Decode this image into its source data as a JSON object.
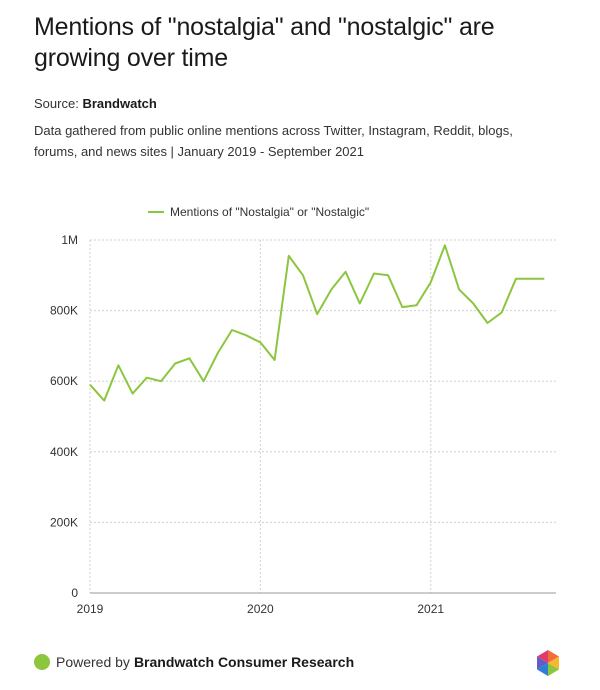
{
  "header": {
    "title": "Mentions of \"nostalgia\" and \"nostalgic\" are growing over time",
    "source_label": "Source:",
    "source_name": "Brandwatch",
    "description": "Data gathered from public online mentions across Twitter, Instagram, Reddit, blogs, forums, and news sites | January 2019 - September 2021"
  },
  "footer": {
    "powered_label": "Powered by",
    "powered_name": "Brandwatch Consumer Research"
  },
  "colors": {
    "line": "#8cc63f",
    "grid": "#d0d0d0",
    "text": "#333333"
  },
  "chart_data": {
    "type": "line",
    "series": [
      {
        "name": "Mentions of \"Nostalgia\" or \"Nostalgic\"",
        "x": [
          "2019-01",
          "2019-02",
          "2019-03",
          "2019-04",
          "2019-05",
          "2019-06",
          "2019-07",
          "2019-08",
          "2019-09",
          "2019-10",
          "2019-11",
          "2019-12",
          "2020-01",
          "2020-02",
          "2020-03",
          "2020-04",
          "2020-05",
          "2020-06",
          "2020-07",
          "2020-08",
          "2020-09",
          "2020-10",
          "2020-11",
          "2020-12",
          "2021-01",
          "2021-02",
          "2021-03",
          "2021-04",
          "2021-05",
          "2021-06",
          "2021-07",
          "2021-08",
          "2021-09"
        ],
        "values": [
          590000,
          545000,
          645000,
          565000,
          610000,
          600000,
          650000,
          665000,
          600000,
          680000,
          745000,
          730000,
          710000,
          660000,
          955000,
          900000,
          790000,
          860000,
          910000,
          820000,
          905000,
          900000,
          810000,
          815000,
          880000,
          985000,
          860000,
          820000,
          765000,
          795000,
          890000,
          890000,
          890000
        ]
      }
    ],
    "ylim": [
      0,
      1000000
    ],
    "yticks": [
      0,
      200000,
      400000,
      600000,
      800000,
      1000000
    ],
    "ytick_labels": [
      "0",
      "200K",
      "400K",
      "600K",
      "800K",
      "1M"
    ],
    "xticks": [
      "2019-01",
      "2020-01",
      "2021-01"
    ],
    "xtick_labels": [
      "2019",
      "2020",
      "2021"
    ],
    "grid": true,
    "legend_position": "top-center"
  }
}
